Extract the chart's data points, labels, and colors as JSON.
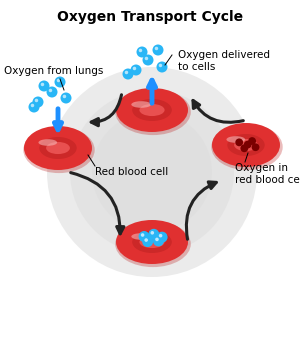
{
  "title": "Oxygen Transport Cycle",
  "title_fontsize": 10,
  "title_fontweight": "bold",
  "background_color": "#ffffff",
  "labels": {
    "oxygen_from_lungs": "Oxygen from lungs",
    "oxygen_delivered": "Oxygen delivered\nto cells",
    "red_blood_cell": "Red blood cell",
    "oxygen_in_rbc": "Oxygen in\nred blood cell"
  },
  "cell_red_outer": "#e03030",
  "cell_red_mid": "#cc2828",
  "cell_red_inner": "#f07070",
  "cell_highlight": "#f9b0b0",
  "cell_dark_spot": "#7a0000",
  "oxygen_color": "#29b6f6",
  "blue_arrow_color": "#1e90ff",
  "black_arrow_color": "#222222",
  "label_fontsize": 7.5,
  "ring_colors": [
    "#d8d8d8",
    "#cacaca",
    "#bcbcbc"
  ],
  "ring_radii": [
    105,
    82,
    60
  ],
  "ring_alphas": [
    0.5,
    0.4,
    0.3
  ]
}
